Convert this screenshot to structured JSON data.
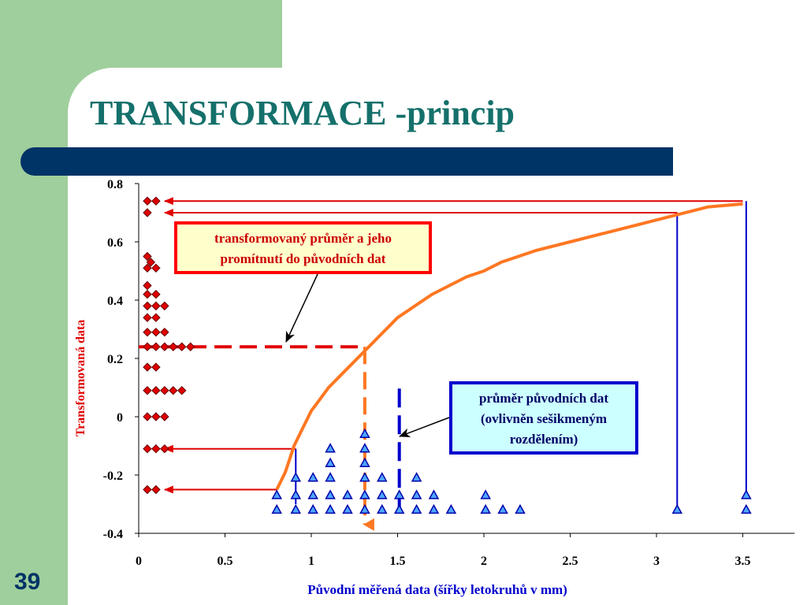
{
  "slide": {
    "title": "TRANSFORMACE -princip",
    "number": "39",
    "colors": {
      "background": "#9fcf9c",
      "title": "#15706b",
      "bar": "#003366",
      "curve": "#ff7722",
      "transformed": "#e00000",
      "original": "#0000cc"
    }
  },
  "annotations": {
    "transformed_mean": [
      "transformovaný průměr a jeho",
      "promítnutí do původních dat"
    ],
    "original_mean": [
      "průměr původních dat",
      "(ovlivněn sešikmeným",
      "rozdělením)"
    ]
  },
  "chart_data": {
    "type": "scatter",
    "xlabel": "Původní měřená data (šířky letokruhů v mm)",
    "ylabel": "Transformovaná data",
    "xlim": [
      0,
      3.8
    ],
    "ylim": [
      -0.4,
      0.8
    ],
    "x_ticks": [
      "0",
      "0.5",
      "1",
      "1.5",
      "2",
      "2.5",
      "3",
      "3.5"
    ],
    "y_ticks": [
      "0.8",
      "0.6",
      "0.4",
      "0.2",
      "0",
      "-0.2",
      "-0.4"
    ],
    "original_mean": 1.51,
    "transformed_mean": 0.24,
    "original_points": [
      [
        0.8,
        -0.32
      ],
      [
        0.91,
        -0.32
      ],
      [
        1.01,
        -0.32
      ],
      [
        1.11,
        -0.32
      ],
      [
        1.21,
        -0.32
      ],
      [
        1.31,
        -0.32
      ],
      [
        1.41,
        -0.32
      ],
      [
        1.51,
        -0.32
      ],
      [
        1.61,
        -0.32
      ],
      [
        1.71,
        -0.32
      ],
      [
        1.81,
        -0.32
      ],
      [
        2.01,
        -0.32
      ],
      [
        2.11,
        -0.32
      ],
      [
        2.21,
        -0.32
      ],
      [
        3.12,
        -0.32
      ],
      [
        3.52,
        -0.32
      ],
      [
        0.8,
        -0.27
      ],
      [
        0.91,
        -0.27
      ],
      [
        1.01,
        -0.27
      ],
      [
        1.11,
        -0.27
      ],
      [
        1.21,
        -0.27
      ],
      [
        1.31,
        -0.27
      ],
      [
        1.41,
        -0.27
      ],
      [
        1.51,
        -0.27
      ],
      [
        1.61,
        -0.27
      ],
      [
        1.71,
        -0.27
      ],
      [
        2.01,
        -0.27
      ],
      [
        3.52,
        -0.27
      ],
      [
        0.91,
        -0.21
      ],
      [
        1.01,
        -0.21
      ],
      [
        1.11,
        -0.21
      ],
      [
        1.31,
        -0.21
      ],
      [
        1.41,
        -0.21
      ],
      [
        1.61,
        -0.21
      ],
      [
        1.31,
        -0.16
      ],
      [
        1.11,
        -0.16
      ],
      [
        1.11,
        -0.11
      ],
      [
        1.31,
        -0.11
      ],
      [
        1.31,
        -0.06
      ]
    ],
    "transformed_points": [
      [
        0.05,
        0.74
      ],
      [
        0.1,
        0.74
      ],
      [
        0.05,
        0.7
      ],
      [
        0.05,
        0.55
      ],
      [
        0.07,
        0.53
      ],
      [
        0.05,
        0.51
      ],
      [
        0.1,
        0.51
      ],
      [
        0.05,
        0.45
      ],
      [
        0.05,
        0.42
      ],
      [
        0.1,
        0.42
      ],
      [
        0.05,
        0.38
      ],
      [
        0.1,
        0.38
      ],
      [
        0.15,
        0.38
      ],
      [
        0.05,
        0.34
      ],
      [
        0.1,
        0.34
      ],
      [
        0.05,
        0.29
      ],
      [
        0.1,
        0.29
      ],
      [
        0.15,
        0.29
      ],
      [
        0.05,
        0.24
      ],
      [
        0.1,
        0.24
      ],
      [
        0.15,
        0.24
      ],
      [
        0.2,
        0.24
      ],
      [
        0.25,
        0.24
      ],
      [
        0.3,
        0.24
      ],
      [
        0.05,
        0.17
      ],
      [
        0.1,
        0.17
      ],
      [
        0.05,
        0.09
      ],
      [
        0.1,
        0.09
      ],
      [
        0.15,
        0.09
      ],
      [
        0.2,
        0.09
      ],
      [
        0.25,
        0.09
      ],
      [
        0.05,
        0.0
      ],
      [
        0.1,
        0.0
      ],
      [
        0.15,
        0.0
      ],
      [
        0.05,
        -0.11
      ],
      [
        0.1,
        -0.11
      ],
      [
        0.15,
        -0.11
      ],
      [
        0.05,
        -0.25
      ],
      [
        0.1,
        -0.25
      ]
    ],
    "curve": [
      [
        0.8,
        -0.25
      ],
      [
        0.85,
        -0.19
      ],
      [
        0.9,
        -0.1
      ],
      [
        0.95,
        -0.04
      ],
      [
        1.0,
        0.02
      ],
      [
        1.05,
        0.06
      ],
      [
        1.1,
        0.1
      ],
      [
        1.2,
        0.16
      ],
      [
        1.3,
        0.22
      ],
      [
        1.35,
        0.25
      ],
      [
        1.4,
        0.28
      ],
      [
        1.45,
        0.31
      ],
      [
        1.5,
        0.34
      ],
      [
        1.55,
        0.36
      ],
      [
        1.6,
        0.38
      ],
      [
        1.7,
        0.42
      ],
      [
        1.8,
        0.45
      ],
      [
        1.9,
        0.48
      ],
      [
        2.0,
        0.5
      ],
      [
        2.1,
        0.53
      ],
      [
        2.2,
        0.55
      ],
      [
        2.3,
        0.57
      ],
      [
        2.5,
        0.6
      ],
      [
        2.7,
        0.63
      ],
      [
        2.9,
        0.66
      ],
      [
        3.1,
        0.69
      ],
      [
        3.3,
        0.72
      ],
      [
        3.5,
        0.73
      ]
    ]
  }
}
